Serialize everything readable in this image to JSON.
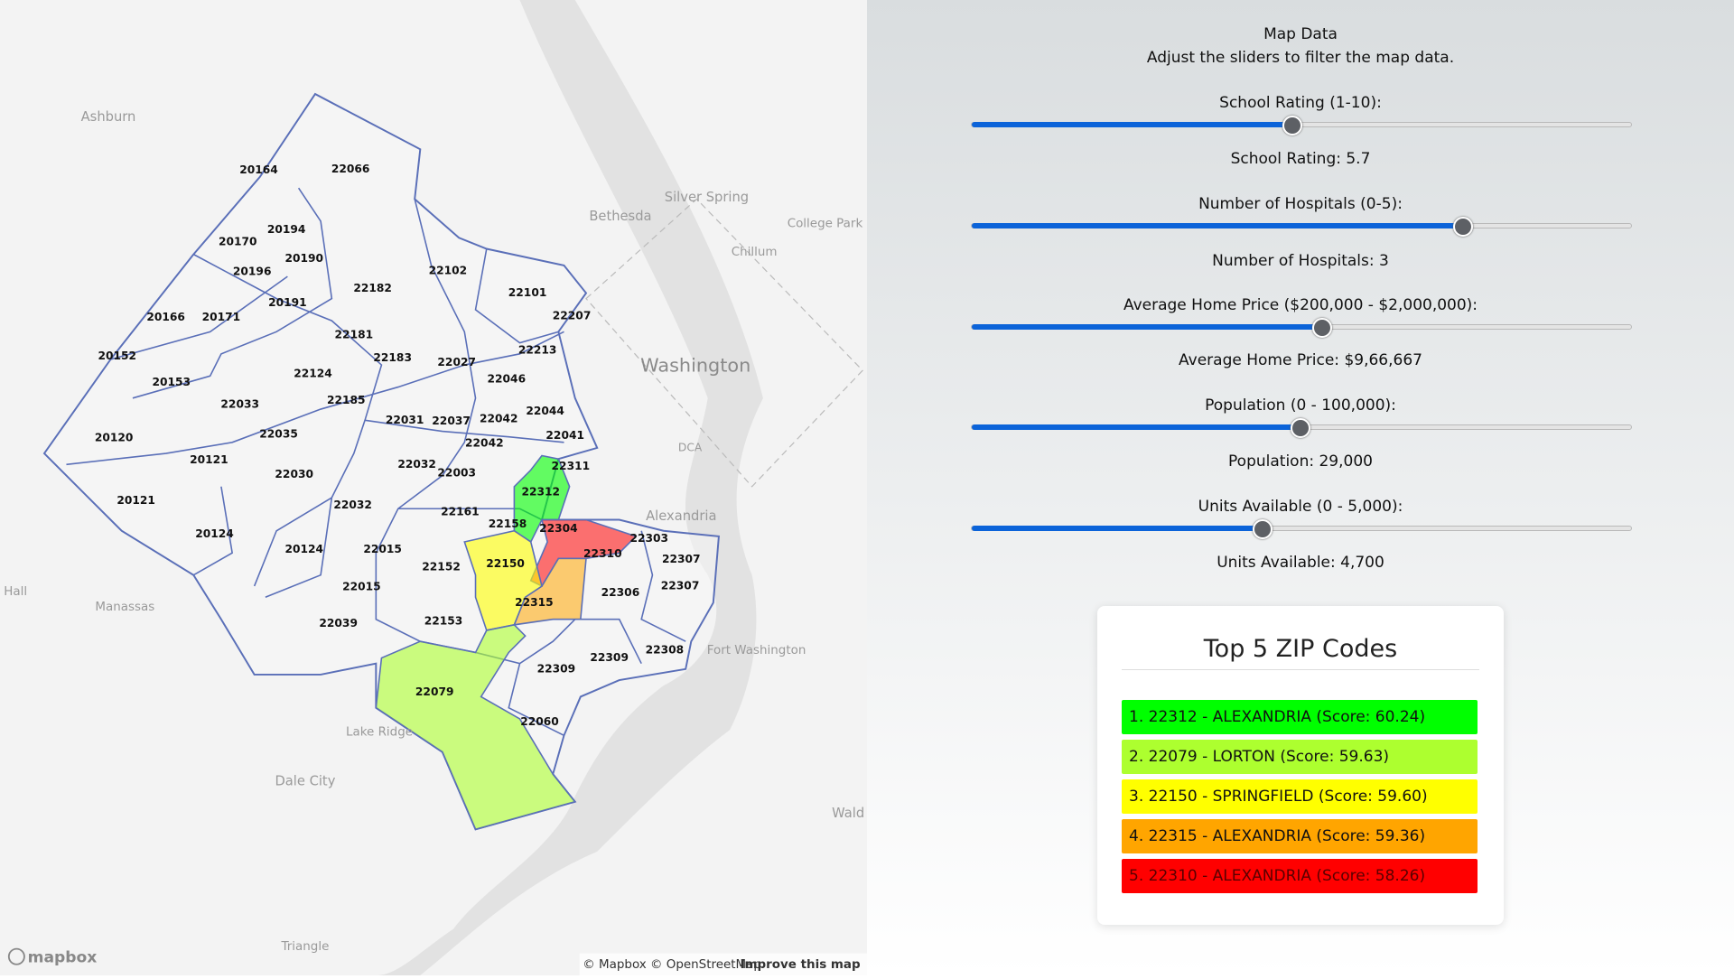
{
  "map": {
    "places": [
      "Ashburn",
      "Bethesda",
      "Silver Spring",
      "College Park",
      "Chillum",
      "Washington",
      "DCA",
      "Alexandria",
      "Hall",
      "Manassas",
      "Fort Washington",
      "Lake Ridge",
      "Dale City",
      "Wald",
      "Triangle"
    ],
    "zip_labels": [
      "20164",
      "22066",
      "20170",
      "20194",
      "20190",
      "20196",
      "20191",
      "22182",
      "22102",
      "22101",
      "20166",
      "20171",
      "22207",
      "20152",
      "22181",
      "22183",
      "22027",
      "22213",
      "20153",
      "22124",
      "22046",
      "22033",
      "22185",
      "22044",
      "22031",
      "22037",
      "22042",
      "20120",
      "22035",
      "22041",
      "22042",
      "20121",
      "22032",
      "22003",
      "22311",
      "22030",
      "22312",
      "20121",
      "22032",
      "22161",
      "22158",
      "22304",
      "22303",
      "20124",
      "20124",
      "22015",
      "22310",
      "22307",
      "22150",
      "22152",
      "22015",
      "22307",
      "22306",
      "22315",
      "22039",
      "22153",
      "22308",
      "22309",
      "22309",
      "22079",
      "22060"
    ],
    "attribution": "© Mapbox © OpenStreetMap",
    "improve_link": "Improve this map",
    "logo": "mapbox"
  },
  "panel": {
    "title": "Map Data",
    "subtitle": "Adjust the sliders to filter the map data.",
    "sliders": [
      {
        "label": "School Rating (1-10):",
        "value_text": "School Rating: 5.7"
      },
      {
        "label": "Number of Hospitals (0-5):",
        "value_text": "Number of Hospitals: 3"
      },
      {
        "label": "Average Home Price ($200,000 - $2,000,000):",
        "value_text": "Average Home Price: $9,66,667"
      },
      {
        "label": "Population (0 - 100,000):",
        "value_text": "Population: 29,000"
      },
      {
        "label": "Units Available (0 - 5,000):",
        "value_text": "Units Available: 4,700"
      }
    ]
  },
  "top5": {
    "title": "Top 5 ZIP Codes",
    "items": [
      {
        "text": "1. 22312 - ALEXANDRIA (Score: 60.24)",
        "color": "#00ff00"
      },
      {
        "text": "2. 22079 - LORTON (Score: 59.63)",
        "color": "#adff2f"
      },
      {
        "text": "3. 22150 - SPRINGFIELD (Score: 59.60)",
        "color": "#ffff00"
      },
      {
        "text": "4. 22315 - ALEXANDRIA (Score: 59.36)",
        "color": "#ffa500"
      },
      {
        "text": "5. 22310 - ALEXANDRIA (Score: 58.26)",
        "color": "#ff0000"
      }
    ]
  }
}
